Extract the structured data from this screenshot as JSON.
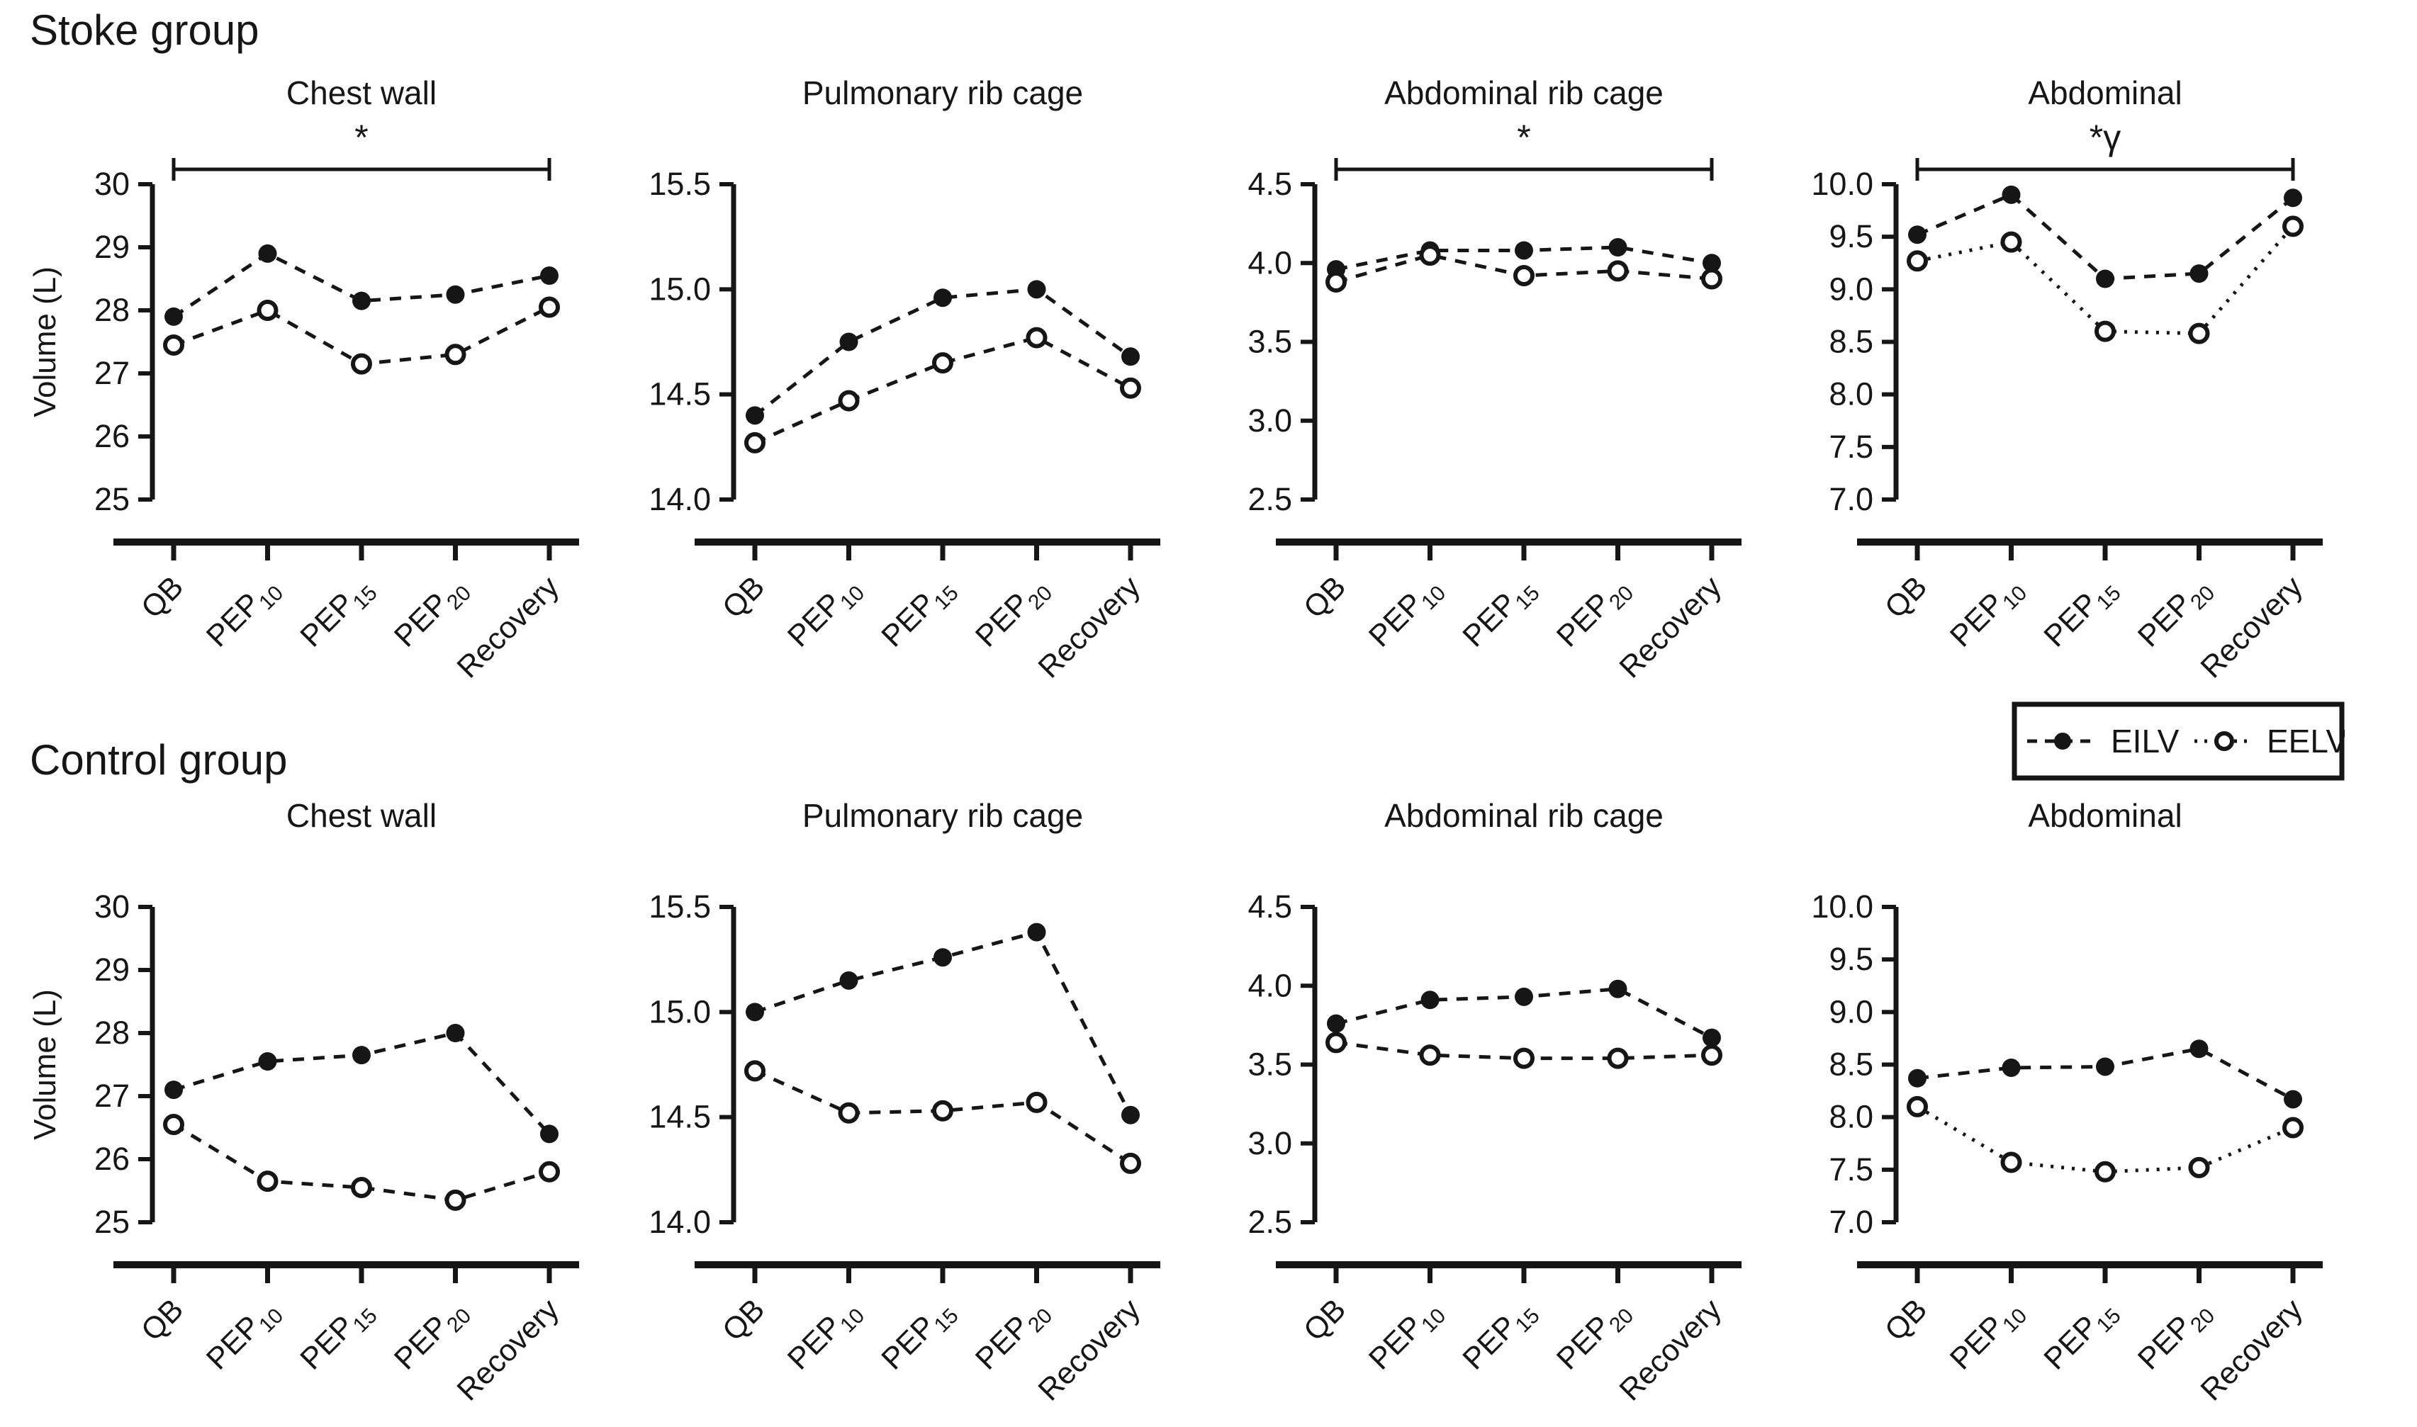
{
  "page": {
    "group_titles": [
      "Stoke group",
      "Control group"
    ],
    "y_axis_label": "Volume (L)",
    "colors": {
      "ink": "#161616",
      "background": "#ffffff"
    },
    "legend": {
      "position": "right-middle",
      "items": [
        {
          "label": "EILV",
          "marker": "filled-circle",
          "line": "dashed"
        },
        {
          "label": "EELV",
          "marker": "open-circle",
          "line": "dotted"
        }
      ]
    }
  },
  "chart_data": [
    {
      "type": "line",
      "group": "Stoke group",
      "title": "Chest wall",
      "ylabel": "Volume (L)",
      "categories": [
        "QB",
        "PEP10",
        "PEP15",
        "PEP20",
        "Recovery"
      ],
      "categories_display": [
        {
          "text": "QB",
          "sub": ""
        },
        {
          "text": "PEP",
          "sub": "10"
        },
        {
          "text": "PEP",
          "sub": "15"
        },
        {
          "text": "PEP",
          "sub": "20"
        },
        {
          "text": "Recovery",
          "sub": ""
        }
      ],
      "ylim": [
        25,
        30
      ],
      "yticks": [
        25,
        26,
        27,
        28,
        29,
        30
      ],
      "ytick_labels": [
        "25",
        "26",
        "27",
        "28",
        "29",
        "30"
      ],
      "grid": false,
      "significance": {
        "symbol": "*",
        "span": [
          "QB",
          "Recovery"
        ]
      },
      "series": [
        {
          "name": "EILV",
          "marker": "filled-circle",
          "line": "dashed",
          "values": [
            27.9,
            28.9,
            28.15,
            28.25,
            28.55
          ]
        },
        {
          "name": "EELV",
          "marker": "open-circle",
          "line": "dashed",
          "values": [
            27.45,
            28.0,
            27.15,
            27.3,
            28.05
          ]
        }
      ]
    },
    {
      "type": "line",
      "group": "Stoke group",
      "title": "Pulmonary rib cage",
      "ylabel": "",
      "categories": [
        "QB",
        "PEP10",
        "PEP15",
        "PEP20",
        "Recovery"
      ],
      "categories_display": [
        {
          "text": "QB",
          "sub": ""
        },
        {
          "text": "PEP",
          "sub": "10"
        },
        {
          "text": "PEP",
          "sub": "15"
        },
        {
          "text": "PEP",
          "sub": "20"
        },
        {
          "text": "Recovery",
          "sub": ""
        }
      ],
      "ylim": [
        14.0,
        15.5
      ],
      "yticks": [
        14.0,
        14.5,
        15.0,
        15.5
      ],
      "ytick_labels": [
        "14.0",
        "14.5",
        "15.0",
        "15.5"
      ],
      "grid": false,
      "significance": null,
      "series": [
        {
          "name": "EILV",
          "marker": "filled-circle",
          "line": "dashed",
          "values": [
            14.4,
            14.75,
            14.96,
            15.0,
            14.68
          ]
        },
        {
          "name": "EELV",
          "marker": "open-circle",
          "line": "dashed",
          "values": [
            14.27,
            14.47,
            14.65,
            14.77,
            14.53
          ]
        }
      ]
    },
    {
      "type": "line",
      "group": "Stoke group",
      "title": "Abdominal rib cage",
      "ylabel": "",
      "categories": [
        "QB",
        "PEP10",
        "PEP15",
        "PEP20",
        "Recovery"
      ],
      "categories_display": [
        {
          "text": "QB",
          "sub": ""
        },
        {
          "text": "PEP",
          "sub": "10"
        },
        {
          "text": "PEP",
          "sub": "15"
        },
        {
          "text": "PEP",
          "sub": "20"
        },
        {
          "text": "Recovery",
          "sub": ""
        }
      ],
      "ylim": [
        2.5,
        4.5
      ],
      "yticks": [
        2.5,
        3.0,
        3.5,
        4.0,
        4.5
      ],
      "ytick_labels": [
        "2.5",
        "3.0",
        "3.5",
        "4.0",
        "4.5"
      ],
      "grid": false,
      "significance": {
        "symbol": "*",
        "span": [
          "QB",
          "Recovery"
        ]
      },
      "series": [
        {
          "name": "EILV",
          "marker": "filled-circle",
          "line": "dashed",
          "values": [
            3.96,
            4.08,
            4.08,
            4.1,
            4.0
          ]
        },
        {
          "name": "EELV",
          "marker": "open-circle",
          "line": "dashed",
          "values": [
            3.88,
            4.05,
            3.92,
            3.95,
            3.9
          ]
        }
      ]
    },
    {
      "type": "line",
      "group": "Stoke group",
      "title": "Abdominal",
      "ylabel": "",
      "categories": [
        "QB",
        "PEP10",
        "PEP15",
        "PEP20",
        "Recovery"
      ],
      "categories_display": [
        {
          "text": "QB",
          "sub": ""
        },
        {
          "text": "PEP",
          "sub": "10"
        },
        {
          "text": "PEP",
          "sub": "15"
        },
        {
          "text": "PEP",
          "sub": "20"
        },
        {
          "text": "Recovery",
          "sub": ""
        }
      ],
      "ylim": [
        7.0,
        10.0
      ],
      "yticks": [
        7.0,
        7.5,
        8.0,
        8.5,
        9.0,
        9.5,
        10.0
      ],
      "ytick_labels": [
        "7.0",
        "7.5",
        "8.0",
        "8.5",
        "9.0",
        "9.5",
        "10.0"
      ],
      "grid": false,
      "significance": {
        "symbol": "*γ",
        "span": [
          "QB",
          "Recovery"
        ]
      },
      "series": [
        {
          "name": "EILV",
          "marker": "filled-circle",
          "line": "dashed",
          "values": [
            9.52,
            9.9,
            9.1,
            9.15,
            9.87
          ]
        },
        {
          "name": "EELV",
          "marker": "open-circle",
          "line": "dotted",
          "values": [
            9.27,
            9.45,
            8.6,
            8.58,
            9.6
          ]
        }
      ]
    },
    {
      "type": "line",
      "group": "Control group",
      "title": "Chest wall",
      "ylabel": "Volume (L)",
      "categories": [
        "QB",
        "PEP10",
        "PEP15",
        "PEP20",
        "Recovery"
      ],
      "categories_display": [
        {
          "text": "QB",
          "sub": ""
        },
        {
          "text": "PEP",
          "sub": "10"
        },
        {
          "text": "PEP",
          "sub": "15"
        },
        {
          "text": "PEP",
          "sub": "20"
        },
        {
          "text": "Recovery",
          "sub": ""
        }
      ],
      "ylim": [
        25,
        30
      ],
      "yticks": [
        25,
        26,
        27,
        28,
        29,
        30
      ],
      "ytick_labels": [
        "25",
        "26",
        "27",
        "28",
        "29",
        "30"
      ],
      "grid": false,
      "significance": null,
      "series": [
        {
          "name": "EILV",
          "marker": "filled-circle",
          "line": "dashed",
          "values": [
            27.1,
            27.55,
            27.65,
            28.0,
            26.4
          ]
        },
        {
          "name": "EELV",
          "marker": "open-circle",
          "line": "dashed",
          "values": [
            26.55,
            25.65,
            25.55,
            25.35,
            25.8
          ]
        }
      ]
    },
    {
      "type": "line",
      "group": "Control group",
      "title": "Pulmonary rib cage",
      "ylabel": "",
      "categories": [
        "QB",
        "PEP10",
        "PEP15",
        "PEP20",
        "Recovery"
      ],
      "categories_display": [
        {
          "text": "QB",
          "sub": ""
        },
        {
          "text": "PEP",
          "sub": "10"
        },
        {
          "text": "PEP",
          "sub": "15"
        },
        {
          "text": "PEP",
          "sub": "20"
        },
        {
          "text": "Recovery",
          "sub": ""
        }
      ],
      "ylim": [
        14.0,
        15.5
      ],
      "yticks": [
        14.0,
        14.5,
        15.0,
        15.5
      ],
      "ytick_labels": [
        "14.0",
        "14.5",
        "15.0",
        "15.5"
      ],
      "grid": false,
      "significance": null,
      "series": [
        {
          "name": "EILV",
          "marker": "filled-circle",
          "line": "dashed",
          "values": [
            15.0,
            15.15,
            15.26,
            15.38,
            14.51
          ]
        },
        {
          "name": "EELV",
          "marker": "open-circle",
          "line": "dashed",
          "values": [
            14.72,
            14.52,
            14.53,
            14.57,
            14.28
          ]
        }
      ]
    },
    {
      "type": "line",
      "group": "Control group",
      "title": "Abdominal rib cage",
      "ylabel": "",
      "categories": [
        "QB",
        "PEP10",
        "PEP15",
        "PEP20",
        "Recovery"
      ],
      "categories_display": [
        {
          "text": "QB",
          "sub": ""
        },
        {
          "text": "PEP",
          "sub": "10"
        },
        {
          "text": "PEP",
          "sub": "15"
        },
        {
          "text": "PEP",
          "sub": "20"
        },
        {
          "text": "Recovery",
          "sub": ""
        }
      ],
      "ylim": [
        2.5,
        4.5
      ],
      "yticks": [
        2.5,
        3.0,
        3.5,
        4.0,
        4.5
      ],
      "ytick_labels": [
        "2.5",
        "3.0",
        "3.5",
        "4.0",
        "4.5"
      ],
      "grid": false,
      "significance": null,
      "series": [
        {
          "name": "EILV",
          "marker": "filled-circle",
          "line": "dashed",
          "values": [
            3.76,
            3.91,
            3.93,
            3.98,
            3.67
          ]
        },
        {
          "name": "EELV",
          "marker": "open-circle",
          "line": "dashed",
          "values": [
            3.64,
            3.56,
            3.54,
            3.54,
            3.56
          ]
        }
      ]
    },
    {
      "type": "line",
      "group": "Control group",
      "title": "Abdominal",
      "ylabel": "",
      "categories": [
        "QB",
        "PEP10",
        "PEP15",
        "PEP20",
        "Recovery"
      ],
      "categories_display": [
        {
          "text": "QB",
          "sub": ""
        },
        {
          "text": "PEP",
          "sub": "10"
        },
        {
          "text": "PEP",
          "sub": "15"
        },
        {
          "text": "PEP",
          "sub": "20"
        },
        {
          "text": "Recovery",
          "sub": ""
        }
      ],
      "ylim": [
        7.0,
        10.0
      ],
      "yticks": [
        7.0,
        7.5,
        8.0,
        8.5,
        9.0,
        9.5,
        10.0
      ],
      "ytick_labels": [
        "7.0",
        "7.5",
        "8.0",
        "8.5",
        "9.0",
        "9.5",
        "10.0"
      ],
      "grid": false,
      "significance": null,
      "series": [
        {
          "name": "EILV",
          "marker": "filled-circle",
          "line": "dashed",
          "values": [
            8.37,
            8.47,
            8.48,
            8.65,
            8.17
          ]
        },
        {
          "name": "EELV",
          "marker": "open-circle",
          "line": "dotted",
          "values": [
            8.1,
            7.57,
            7.48,
            7.52,
            7.9
          ]
        }
      ]
    }
  ]
}
